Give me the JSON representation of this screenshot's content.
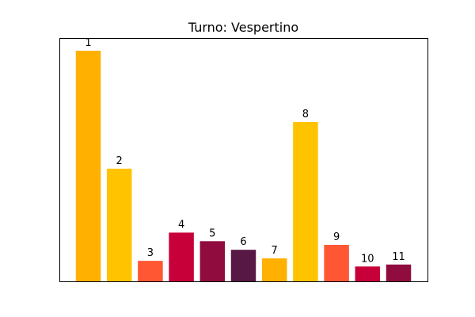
{
  "chart_data": {
    "type": "bar",
    "title": "Turno: Vespertino",
    "xlabel": "",
    "ylabel": "",
    "axes_ticks_visible": false,
    "grid": false,
    "legend": "none",
    "ylim": [
      0,
      9.9
    ],
    "categories": [
      "1",
      "2",
      "3",
      "4",
      "5",
      "6",
      "7",
      "8",
      "9",
      "10",
      "11"
    ],
    "values": [
      9.4,
      4.6,
      0.85,
      2.0,
      1.65,
      1.3,
      0.95,
      6.5,
      1.5,
      0.62,
      0.7
    ],
    "colors": [
      "#FFB000",
      "#FFC300",
      "#FF5733",
      "#C70039",
      "#900C3F",
      "#581845",
      "#FFB000",
      "#FFC300",
      "#FF5733",
      "#C70039",
      "#900C3F"
    ]
  }
}
